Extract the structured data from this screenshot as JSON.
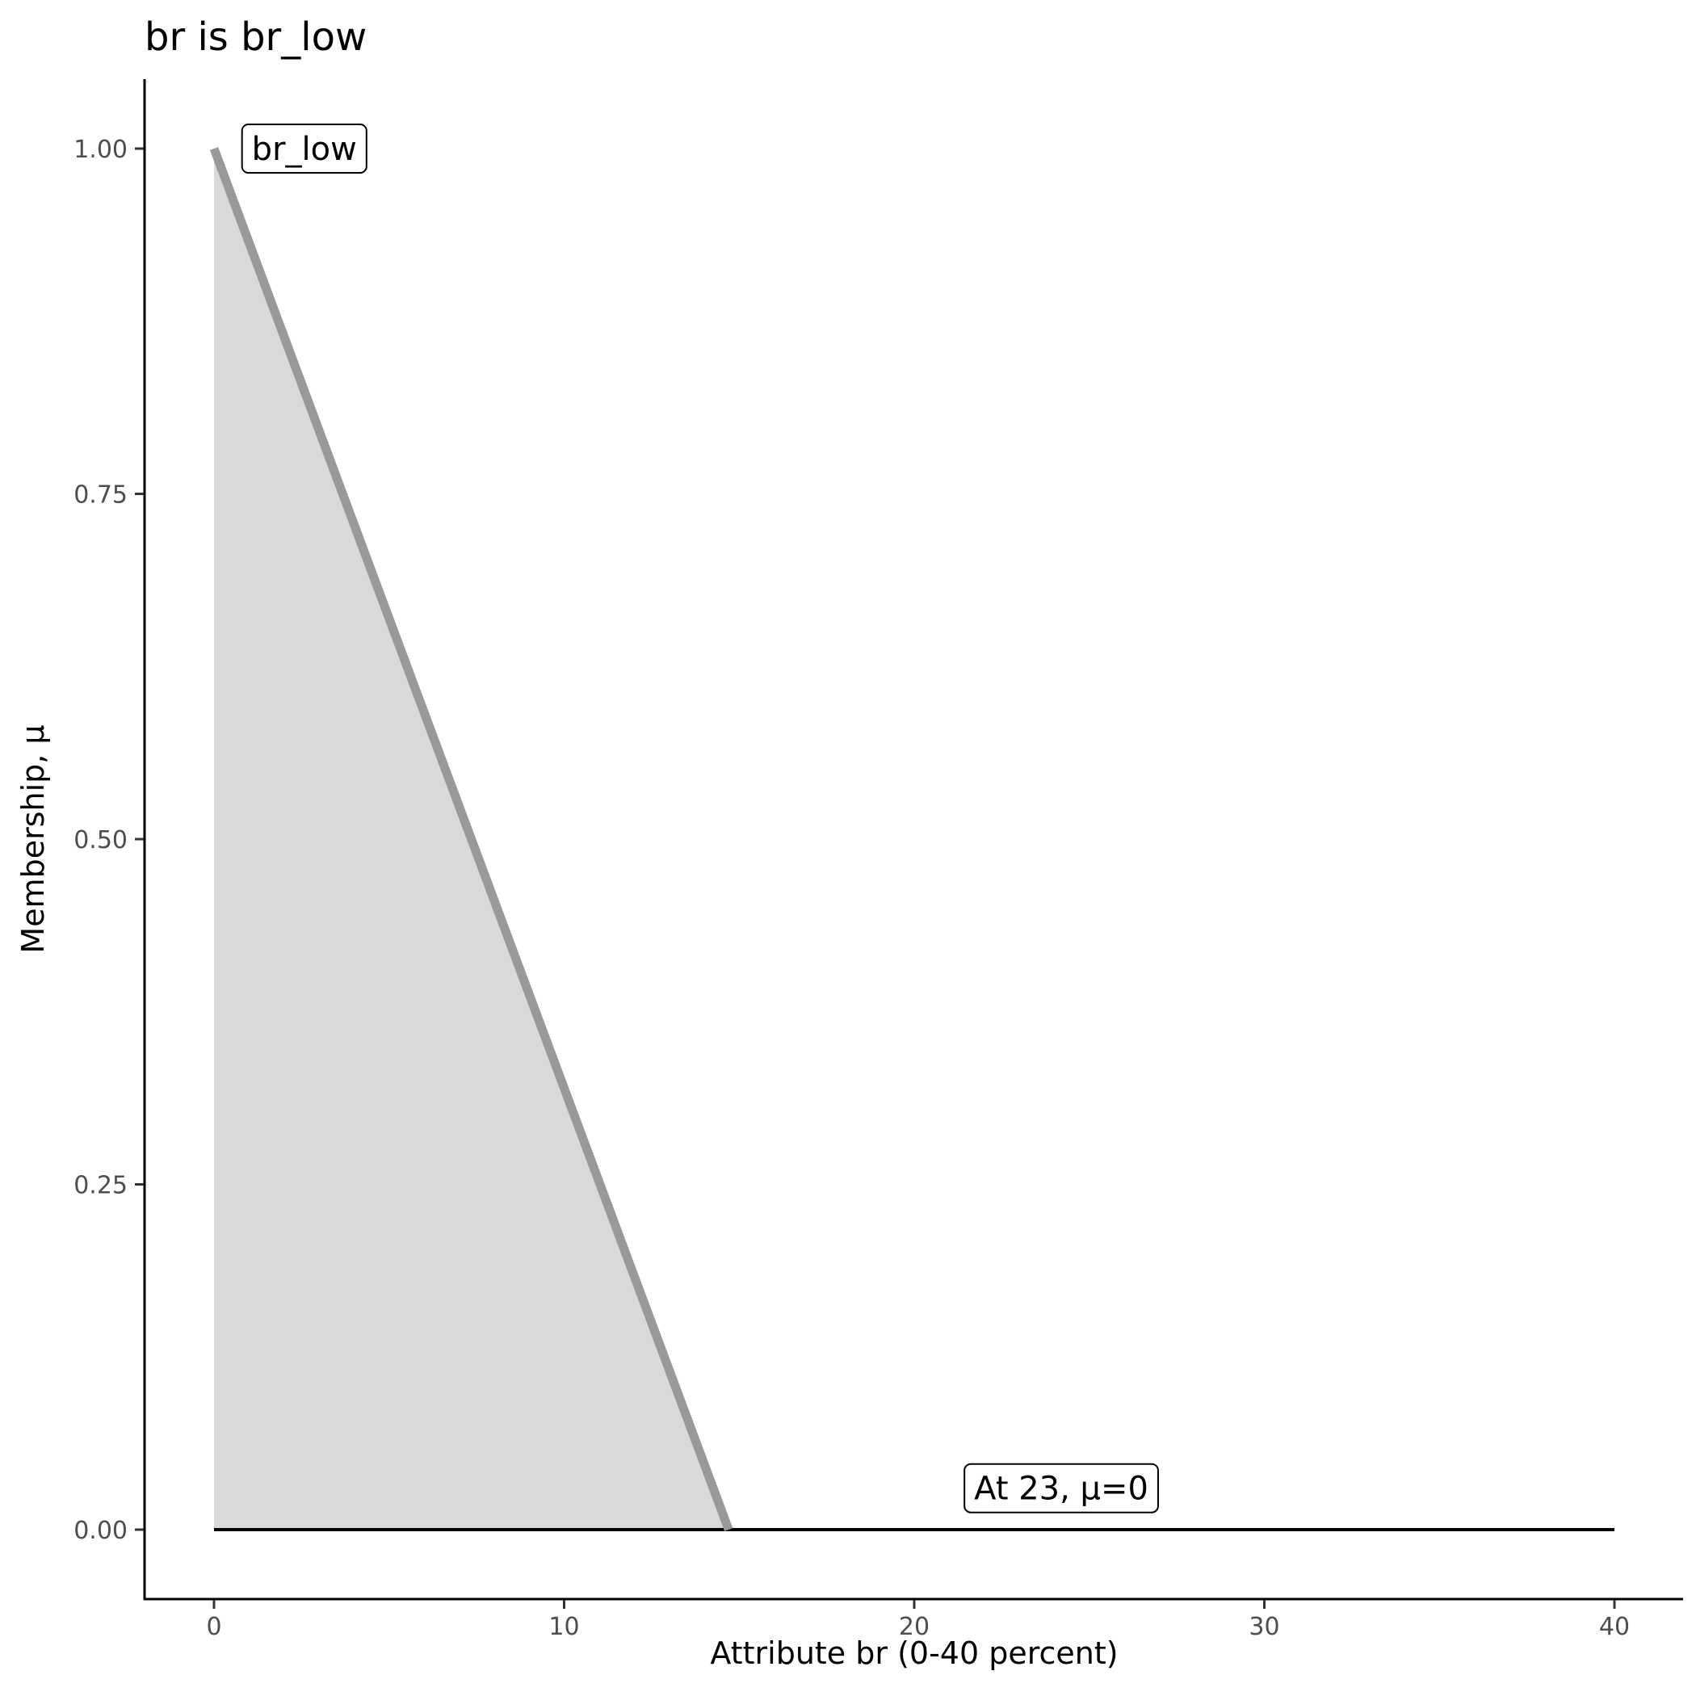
{
  "chart_data": {
    "type": "area",
    "title": "br is br_low",
    "xlabel": "Attribute br (0-40 percent)",
    "ylabel": "Membership, μ",
    "xlim": [
      -2,
      42
    ],
    "ylim": [
      -0.05,
      1.05
    ],
    "x_ticks": [
      "0",
      "10",
      "20",
      "30",
      "40"
    ],
    "y_ticks": [
      "0.00",
      "0.25",
      "0.50",
      "0.75",
      "1.00"
    ],
    "grid": false,
    "series": [
      {
        "name": "br_low",
        "x": [
          0,
          14.7
        ],
        "y": [
          1,
          0
        ],
        "line_color": "#999999",
        "fill_color": "#d9d9d9"
      }
    ],
    "baseline": {
      "x": [
        0,
        40
      ],
      "y": [
        0,
        0
      ],
      "color": "#000000"
    },
    "annotations": [
      {
        "text": "br_low",
        "x": 0.8,
        "y": 1.0
      },
      {
        "text": "At 23, μ=0",
        "x": 24.2,
        "y": 0.03
      }
    ]
  }
}
